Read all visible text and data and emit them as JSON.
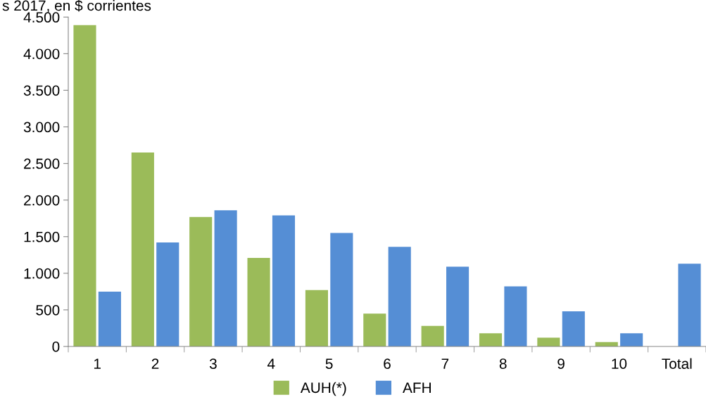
{
  "chart_data": {
    "type": "bar",
    "title": "s 2017, en $ corrientes",
    "categories": [
      "1",
      "2",
      "3",
      "4",
      "5",
      "6",
      "7",
      "8",
      "9",
      "10",
      "Total"
    ],
    "series": [
      {
        "name": "AUH(*)",
        "color": "#9bbb59",
        "values": [
          4390,
          2650,
          1770,
          1210,
          770,
          450,
          280,
          180,
          120,
          60,
          null
        ]
      },
      {
        "name": "AFH",
        "color": "#558ed5",
        "values": [
          750,
          1420,
          1860,
          1790,
          1550,
          1360,
          1090,
          820,
          480,
          180,
          1130
        ]
      }
    ],
    "ylim": [
      0,
      4500
    ],
    "yticks": [
      0,
      500,
      {
        "value": 1000,
        "label": "1.000"
      },
      {
        "value": 1500,
        "label": "1.500"
      },
      {
        "value": 2000,
        "label": "2.000"
      },
      {
        "value": 2500,
        "label": "2.500"
      },
      {
        "value": 3000,
        "label": "3.000"
      },
      {
        "value": 3500,
        "label": "3.500"
      },
      {
        "value": 4000,
        "label": "4.000"
      },
      {
        "value": 4500,
        "label": "4.500"
      }
    ],
    "grid": false,
    "legend": "bottom"
  }
}
